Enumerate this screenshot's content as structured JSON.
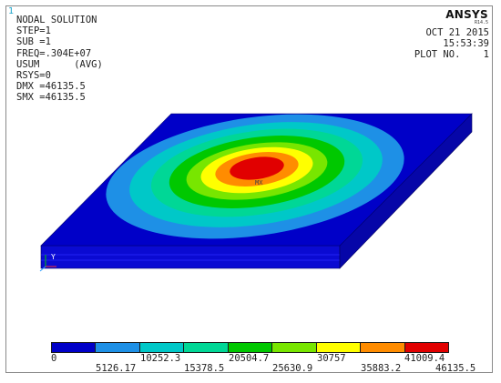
{
  "window_number": "1",
  "info_lines": [
    "NODAL SOLUTION",
    "STEP=1",
    "SUB =1",
    "FREQ=.304E+07",
    "USUM      (AVG)",
    "RSYS=0",
    "DMX =46135.5",
    "SMX =46135.5"
  ],
  "brand": {
    "name": "ANSYS",
    "version": "R14.5"
  },
  "meta": {
    "date": "OCT 21 2015",
    "time": "15:53:39",
    "plot_no": "PLOT NO.    1"
  },
  "markers": {
    "max_label": "MX",
    "axis_y": "Y"
  },
  "colorbar": {
    "colors": [
      "#0000c8",
      "#1e90e6",
      "#00c8c8",
      "#00d796",
      "#00c800",
      "#78e600",
      "#ffff00",
      "#ff8c00",
      "#e10000"
    ],
    "labels_top_row": [
      "0",
      "10252.3",
      "20504.7",
      "30757",
      "41009.4"
    ],
    "labels_bottom_row": [
      "5126.17",
      "15378.5",
      "25630.9",
      "35883.2",
      "46135.5"
    ]
  }
}
